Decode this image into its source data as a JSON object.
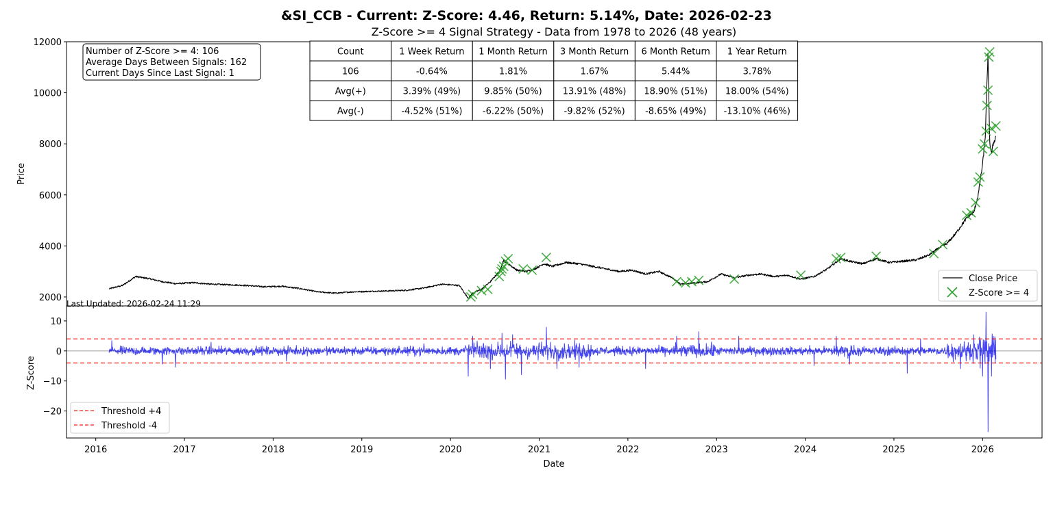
{
  "chart_data": [
    {
      "type": "line",
      "title": "&SI_CCB - Current: Z-Score: 4.46, Return: 5.14%, Date: 2026-02-23",
      "subtitle": "Z-Score >= 4 Signal Strategy - Data from 1978 to 2026 (48 years)",
      "xlabel": "Date",
      "ylabel": "Price",
      "xlim": [
        2015.67,
        2026.67
      ],
      "ylim": [
        1650,
        12000
      ],
      "x_ticks": [
        2016,
        2017,
        2018,
        2019,
        2020,
        2021,
        2022,
        2023,
        2024,
        2025,
        2026
      ],
      "x_tick_labels": [
        "2016",
        "2017",
        "2018",
        "2019",
        "2020",
        "2021",
        "2022",
        "2023",
        "2024",
        "2025",
        "2026"
      ],
      "y_ticks": [
        2000,
        4000,
        6000,
        8000,
        10000,
        12000
      ],
      "y_tick_labels": [
        "2000",
        "4000",
        "6000",
        "8000",
        "10000",
        "12000"
      ],
      "legend_position": "bottom-right",
      "legend": [
        "Close Price",
        "Z-Score >= 4"
      ],
      "series": [
        {
          "name": "Close Price",
          "color": "#000000",
          "x": [
            2016.15,
            2016.3,
            2016.45,
            2016.6,
            2016.75,
            2016.9,
            2017.1,
            2017.3,
            2017.5,
            2017.7,
            2017.9,
            2018.1,
            2018.3,
            2018.5,
            2018.7,
            2018.9,
            2019.1,
            2019.3,
            2019.5,
            2019.7,
            2019.9,
            2020.1,
            2020.2,
            2020.25,
            2020.35,
            2020.45,
            2020.55,
            2020.6,
            2020.65,
            2020.75,
            2020.85,
            2020.95,
            2021.05,
            2021.15,
            2021.3,
            2021.45,
            2021.6,
            2021.75,
            2021.9,
            2022.05,
            2022.2,
            2022.35,
            2022.5,
            2022.6,
            2022.75,
            2022.9,
            2023.05,
            2023.2,
            2023.35,
            2023.5,
            2023.65,
            2023.8,
            2023.95,
            2024.1,
            2024.25,
            2024.4,
            2024.5,
            2024.65,
            2024.8,
            2024.95,
            2025.1,
            2025.25,
            2025.4,
            2025.5,
            2025.6,
            2025.7,
            2025.8,
            2025.85,
            2025.9,
            2025.95,
            2026.0,
            2026.03,
            2026.06,
            2026.08,
            2026.1,
            2026.12,
            2026.15
          ],
          "values": [
            2320,
            2450,
            2800,
            2720,
            2600,
            2520,
            2560,
            2500,
            2480,
            2450,
            2400,
            2420,
            2330,
            2200,
            2150,
            2200,
            2220,
            2240,
            2260,
            2350,
            2500,
            2450,
            1950,
            2150,
            2300,
            2600,
            3000,
            3450,
            3300,
            3050,
            3000,
            3100,
            3300,
            3200,
            3350,
            3300,
            3200,
            3100,
            3000,
            3050,
            2900,
            3000,
            2750,
            2500,
            2550,
            2600,
            2900,
            2750,
            2850,
            2900,
            2800,
            2850,
            2700,
            2800,
            3100,
            3500,
            3400,
            3300,
            3500,
            3350,
            3400,
            3450,
            3650,
            3900,
            4100,
            4500,
            5000,
            5200,
            5300,
            6000,
            7200,
            8300,
            11500,
            8100,
            7600,
            8000,
            8300
          ]
        }
      ],
      "signals": {
        "name": "Z-Score >= 4",
        "color": "#2ca02c",
        "x": [
          2020.23,
          2020.25,
          2020.35,
          2020.42,
          2020.55,
          2020.57,
          2020.58,
          2020.6,
          2020.62,
          2020.65,
          2020.82,
          2020.92,
          2021.08,
          2022.55,
          2022.65,
          2022.72,
          2022.8,
          2023.2,
          2023.95,
          2024.35,
          2024.4,
          2024.8,
          2025.45,
          2025.55,
          2025.82,
          2025.87,
          2025.92,
          2025.95,
          2025.97,
          2026.0,
          2026.02,
          2026.04,
          2026.05,
          2026.06,
          2026.07,
          2026.08,
          2026.1,
          2026.12,
          2026.15
        ],
        "values": [
          2000,
          2100,
          2250,
          2300,
          2800,
          3000,
          3100,
          3200,
          3400,
          3500,
          3100,
          3050,
          3550,
          2600,
          2550,
          2600,
          2650,
          2700,
          2850,
          3500,
          3550,
          3600,
          3700,
          4050,
          5200,
          5300,
          5700,
          6500,
          6700,
          7800,
          8000,
          8500,
          9500,
          10100,
          11400,
          11600,
          8600,
          7700,
          8700
        ]
      }
    },
    {
      "type": "line",
      "xlabel": "Date",
      "ylabel": "Z-Score",
      "xlim": [
        2015.67,
        2026.67
      ],
      "ylim": [
        -29,
        15
      ],
      "x_ticks": [
        2016,
        2017,
        2018,
        2019,
        2020,
        2021,
        2022,
        2023,
        2024,
        2025,
        2026
      ],
      "y_ticks": [
        10,
        0,
        -10,
        -20
      ],
      "y_tick_labels": [
        "10",
        "0",
        "−10",
        "−20"
      ],
      "legend_position": "bottom-left",
      "legend": [
        "Threshold +4",
        "Threshold -4"
      ],
      "thresholds": [
        4,
        -4
      ],
      "threshold_color": "#ff0000",
      "series_color": "#0000ee",
      "zero_line_color": "#bbbbbb",
      "x_range": [
        2016.15,
        2026.15
      ],
      "spikes": [
        {
          "x": 2016.18,
          "value": 3.5
        },
        {
          "x": 2016.75,
          "value": -4.5
        },
        {
          "x": 2016.9,
          "value": -5.5
        },
        {
          "x": 2017.3,
          "value": 3.0
        },
        {
          "x": 2018.15,
          "value": -3.5
        },
        {
          "x": 2019.7,
          "value": 2.5
        },
        {
          "x": 2020.2,
          "value": -8.5
        },
        {
          "x": 2020.25,
          "value": 5.0
        },
        {
          "x": 2020.45,
          "value": -6.0
        },
        {
          "x": 2020.58,
          "value": 6.0
        },
        {
          "x": 2020.62,
          "value": -9.5
        },
        {
          "x": 2020.7,
          "value": 5.5
        },
        {
          "x": 2020.8,
          "value": -8.0
        },
        {
          "x": 2021.08,
          "value": 8.0
        },
        {
          "x": 2021.2,
          "value": -6.0
        },
        {
          "x": 2021.45,
          "value": -5.5
        },
        {
          "x": 2022.2,
          "value": -6.0
        },
        {
          "x": 2022.55,
          "value": 5.0
        },
        {
          "x": 2022.8,
          "value": 6.5
        },
        {
          "x": 2023.25,
          "value": 5.0
        },
        {
          "x": 2024.1,
          "value": -5.0
        },
        {
          "x": 2024.35,
          "value": 5.0
        },
        {
          "x": 2024.5,
          "value": -4.5
        },
        {
          "x": 2025.15,
          "value": -7.5
        },
        {
          "x": 2025.3,
          "value": 4.0
        },
        {
          "x": 2025.75,
          "value": -6.0
        },
        {
          "x": 2025.9,
          "value": 5.5
        },
        {
          "x": 2026.0,
          "value": -8.5
        },
        {
          "x": 2026.04,
          "value": 13.0
        },
        {
          "x": 2026.06,
          "value": -27.0
        },
        {
          "x": 2026.1,
          "value": -8.5
        },
        {
          "x": 2026.12,
          "value": 5.0
        }
      ]
    }
  ],
  "info_box": {
    "line1": "Number of Z-Score >= 4: 106",
    "line2": "Average Days Between Signals: 162",
    "line3": "Current Days Since Last Signal: 1"
  },
  "last_updated": "Last Updated: 2026-02-24 11:29",
  "stats_table": {
    "rows": [
      [
        "Count",
        "1 Week Return",
        "1 Month Return",
        "3 Month Return",
        "6 Month Return",
        "1 Year Return"
      ],
      [
        "106",
        "-0.64%",
        "1.81%",
        "1.67%",
        "5.44%",
        "3.78%"
      ],
      [
        "Avg(+)",
        "3.39% (49%)",
        "9.85% (50%)",
        "13.91% (48%)",
        "18.90% (51%)",
        "18.00% (54%)"
      ],
      [
        "Avg(-)",
        "-4.52% (51%)",
        "-6.22% (50%)",
        "-9.82% (52%)",
        "-8.65% (49%)",
        "-13.10% (46%)"
      ]
    ]
  }
}
